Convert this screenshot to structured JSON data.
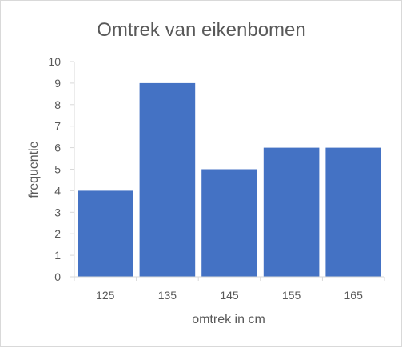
{
  "chart_data": {
    "type": "bar",
    "title": "Omtrek van eikenbomen",
    "xlabel": "omtrek in cm",
    "ylabel": "frequentie",
    "categories": [
      "125",
      "135",
      "145",
      "155",
      "165"
    ],
    "values": [
      4,
      9,
      5,
      6,
      6
    ],
    "ylim": [
      0,
      10
    ],
    "yticks": [
      "0",
      "1",
      "2",
      "3",
      "4",
      "5",
      "6",
      "7",
      "8",
      "9",
      "10"
    ],
    "grid": false,
    "legend": "none",
    "bar_color": "#4472c4",
    "axis_color": "#d9d9d9",
    "text_color": "#595959"
  }
}
